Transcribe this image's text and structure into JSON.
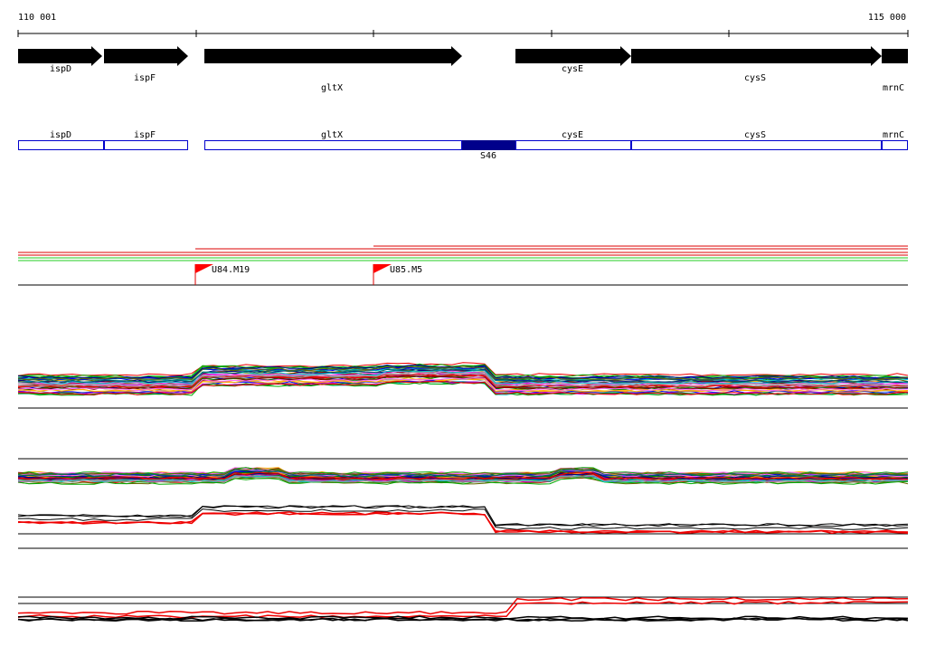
{
  "ruler": {
    "start": "110 001",
    "end": "115 000"
  },
  "genes": [
    "ispD",
    "ispF",
    "gltX",
    "cysE",
    "cysS",
    "mrnC"
  ],
  "features": [
    "ispD",
    "ispF",
    "gltX",
    "cysE",
    "cysS",
    "mrnC"
  ],
  "region": "S46",
  "markers": [
    "U84.M19",
    "U85.M5"
  ]
}
